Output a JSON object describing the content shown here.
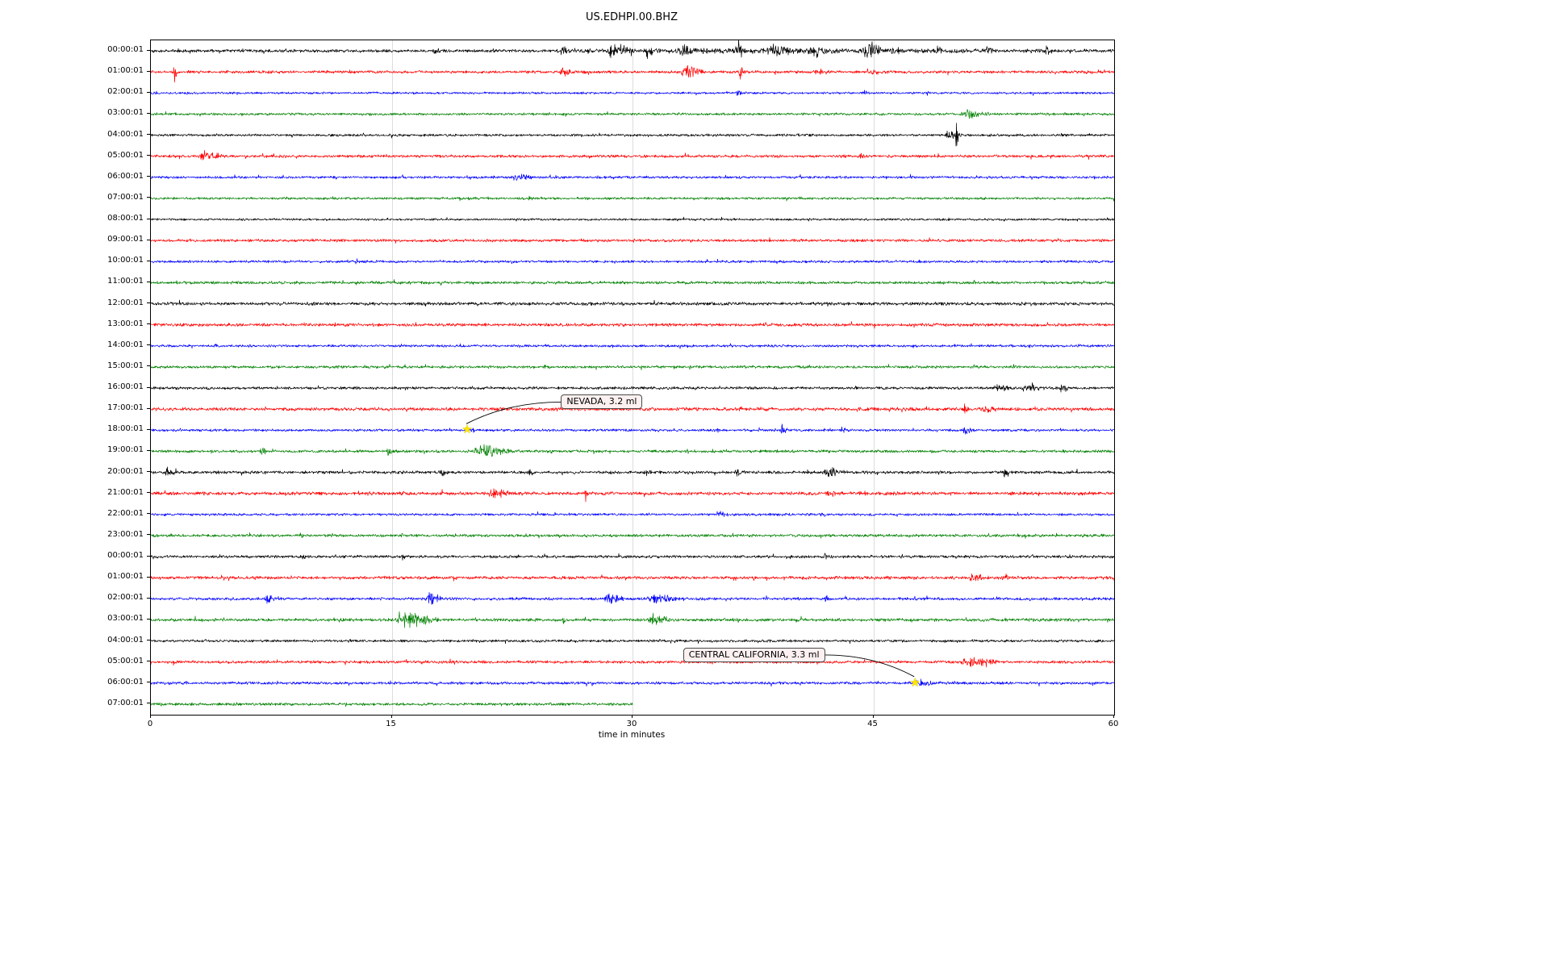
{
  "chart_data": {
    "type": "line",
    "variant": "seismogram-dayplot-helicorder",
    "title": "US.EDHPI.00.BHZ",
    "xlabel": "time in minutes",
    "xlim": [
      0,
      60
    ],
    "x_ticks": [
      0,
      15,
      30,
      45,
      60
    ],
    "grid": {
      "vertical": true,
      "horizontal": false,
      "color": "#dcdcdc"
    },
    "color_cycle": [
      "#000000",
      "#ff0000",
      "#0000ff",
      "#008000"
    ],
    "rows": [
      {
        "label": "00:00:01",
        "color": "#000000",
        "base_amp": 2.2,
        "extent": 60,
        "bursts": [
          [
            17.5,
            0.6,
            4
          ],
          [
            25.4,
            0.8,
            6
          ],
          [
            28.4,
            1.6,
            11
          ],
          [
            30.8,
            0.5,
            8
          ],
          [
            32.8,
            1.2,
            6
          ],
          [
            36.5,
            0.4,
            14
          ],
          [
            38.3,
            1.8,
            7
          ],
          [
            40.8,
            1.5,
            5
          ],
          [
            44.3,
            1.3,
            15
          ],
          [
            46.0,
            1.0,
            5
          ],
          [
            48.9,
            0.4,
            10
          ],
          [
            51.8,
            0.8,
            4
          ],
          [
            55.6,
            0.6,
            5
          ],
          [
            25.0,
            35.0,
            2
          ]
        ]
      },
      {
        "label": "01:00:01",
        "color": "#ff0000",
        "base_amp": 2.0,
        "extent": 60,
        "bursts": [
          [
            1.4,
            0.3,
            12
          ],
          [
            25.4,
            0.9,
            5
          ],
          [
            32.9,
            1.7,
            8
          ],
          [
            36.6,
            0.4,
            13
          ],
          [
            41.3,
            1.2,
            4
          ],
          [
            44.8,
            0.6,
            3
          ]
        ]
      },
      {
        "label": "02:00:01",
        "color": "#0000ff",
        "base_amp": 1.6,
        "extent": 60,
        "bursts": [
          [
            36.3,
            0.8,
            3
          ],
          [
            44.3,
            0.5,
            2.5
          ]
        ]
      },
      {
        "label": "03:00:01",
        "color": "#008000",
        "base_amp": 1.7,
        "extent": 60,
        "bursts": [
          [
            50.3,
            2.2,
            6
          ]
        ]
      },
      {
        "label": "04:00:01",
        "color": "#000000",
        "base_amp": 1.8,
        "extent": 60,
        "bursts": [
          [
            49.4,
            1.2,
            5
          ],
          [
            50.1,
            0.25,
            19
          ]
        ]
      },
      {
        "label": "05:00:01",
        "color": "#ff0000",
        "base_amp": 2.0,
        "extent": 60,
        "bursts": [
          [
            2.9,
            1.7,
            7
          ],
          [
            44.0,
            0.5,
            3
          ]
        ]
      },
      {
        "label": "06:00:01",
        "color": "#0000ff",
        "base_amp": 1.8,
        "extent": 60,
        "bursts": [
          [
            22.4,
            1.6,
            4
          ]
        ]
      },
      {
        "label": "07:00:01",
        "color": "#008000",
        "base_amp": 1.7,
        "extent": 60,
        "bursts": [
          [
            23.5,
            0.4,
            2.5
          ]
        ]
      },
      {
        "label": "08:00:01",
        "color": "#000000",
        "base_amp": 1.5,
        "extent": 60,
        "bursts": []
      },
      {
        "label": "09:00:01",
        "color": "#ff0000",
        "base_amp": 2.0,
        "extent": 60,
        "bursts": []
      },
      {
        "label": "10:00:01",
        "color": "#0000ff",
        "base_amp": 1.8,
        "extent": 60,
        "bursts": []
      },
      {
        "label": "11:00:01",
        "color": "#008000",
        "base_amp": 2.0,
        "extent": 60,
        "bursts": []
      },
      {
        "label": "12:00:01",
        "color": "#000000",
        "base_amp": 2.3,
        "extent": 60,
        "bursts": []
      },
      {
        "label": "13:00:01",
        "color": "#ff0000",
        "base_amp": 2.2,
        "extent": 60,
        "bursts": []
      },
      {
        "label": "14:00:01",
        "color": "#0000ff",
        "base_amp": 1.8,
        "extent": 60,
        "bursts": [
          [
            3.9,
            0.3,
            3
          ]
        ]
      },
      {
        "label": "15:00:01",
        "color": "#008000",
        "base_amp": 1.9,
        "extent": 60,
        "bursts": []
      },
      {
        "label": "16:00:01",
        "color": "#000000",
        "base_amp": 2.0,
        "extent": 60,
        "bursts": [
          [
            52.4,
            1.2,
            5
          ],
          [
            54.2,
            1.5,
            6
          ],
          [
            56.5,
            0.8,
            5
          ]
        ]
      },
      {
        "label": "17:00:01",
        "color": "#ff0000",
        "base_amp": 2.4,
        "extent": 60,
        "bursts": [
          [
            50.6,
            0.4,
            10
          ],
          [
            51.5,
            1.5,
            4
          ]
        ]
      },
      {
        "label": "18:00:01",
        "color": "#0000ff",
        "base_amp": 1.8,
        "extent": 60,
        "bursts": [
          [
            19.7,
            0.5,
            3
          ],
          [
            35.0,
            0.5,
            6
          ],
          [
            39.2,
            0.5,
            8
          ],
          [
            42.9,
            0.5,
            6
          ],
          [
            50.5,
            0.8,
            6
          ]
        ]
      },
      {
        "label": "19:00:01",
        "color": "#008000",
        "base_amp": 2.0,
        "extent": 60,
        "bursts": [
          [
            6.8,
            0.4,
            8
          ],
          [
            14.6,
            0.5,
            5
          ],
          [
            20.0,
            2.6,
            8
          ]
        ]
      },
      {
        "label": "20:00:01",
        "color": "#000000",
        "base_amp": 2.1,
        "extent": 60,
        "bursts": [
          [
            0.8,
            0.9,
            6
          ],
          [
            17.9,
            0.7,
            5
          ],
          [
            23.4,
            0.5,
            4
          ],
          [
            30.7,
            0.6,
            4
          ],
          [
            36.3,
            0.8,
            3
          ],
          [
            41.8,
            1.6,
            7
          ],
          [
            53.1,
            0.4,
            10
          ]
        ]
      },
      {
        "label": "21:00:01",
        "color": "#ff0000",
        "base_amp": 2.4,
        "extent": 60,
        "bursts": [
          [
            21.0,
            1.6,
            7
          ],
          [
            26.8,
            0.6,
            4
          ],
          [
            42.0,
            0.7,
            5
          ]
        ]
      },
      {
        "label": "22:00:01",
        "color": "#0000ff",
        "base_amp": 1.8,
        "extent": 60,
        "bursts": [
          [
            35.3,
            0.8,
            3
          ],
          [
            41.7,
            0.5,
            2.5
          ]
        ]
      },
      {
        "label": "23:00:01",
        "color": "#008000",
        "base_amp": 2.0,
        "extent": 60,
        "bursts": [
          [
            9.2,
            0.4,
            5
          ],
          [
            15.4,
            0.4,
            3
          ]
        ]
      },
      {
        "label": "00:00:01",
        "color": "#000000",
        "base_amp": 2.0,
        "extent": 60,
        "bursts": [
          [
            9.4,
            0.3,
            5
          ],
          [
            15.6,
            0.3,
            4
          ],
          [
            41.9,
            0.3,
            5
          ]
        ]
      },
      {
        "label": "01:00:01",
        "color": "#ff0000",
        "base_amp": 2.2,
        "extent": 60,
        "bursts": [
          [
            50.8,
            1.4,
            5
          ],
          [
            53.0,
            0.5,
            7
          ]
        ]
      },
      {
        "label": "02:00:01",
        "color": "#0000ff",
        "base_amp": 2.0,
        "extent": 60,
        "bursts": [
          [
            7.0,
            0.8,
            5
          ],
          [
            17.2,
            1.0,
            12
          ],
          [
            28.2,
            1.4,
            6
          ],
          [
            30.8,
            2.2,
            6
          ],
          [
            41.8,
            0.6,
            5
          ]
        ]
      },
      {
        "label": "03:00:01",
        "color": "#008000",
        "base_amp": 2.2,
        "extent": 60,
        "bursts": [
          [
            15.1,
            3.0,
            10
          ],
          [
            25.5,
            0.5,
            5
          ],
          [
            30.9,
            1.7,
            7
          ]
        ]
      },
      {
        "label": "04:00:01",
        "color": "#000000",
        "base_amp": 1.8,
        "extent": 60,
        "bursts": []
      },
      {
        "label": "05:00:01",
        "color": "#ff0000",
        "base_amp": 2.0,
        "extent": 60,
        "bursts": [
          [
            50.3,
            2.7,
            6
          ]
        ]
      },
      {
        "label": "06:00:01",
        "color": "#0000ff",
        "base_amp": 2.0,
        "extent": 60,
        "bursts": [
          [
            47.5,
            1.5,
            4
          ]
        ]
      },
      {
        "label": "07:00:01",
        "color": "#008000",
        "base_amp": 2.0,
        "extent": 30,
        "bursts": []
      }
    ],
    "events": [
      {
        "label": "NEVADA, 3.2 ml",
        "region": "NEVADA",
        "magnitude": "3.2 ml",
        "row_index": 18,
        "row_time": "18:00:01",
        "x_minutes": 19.7,
        "label_x_minutes": 25.6,
        "label_rows_above": 1.3,
        "marker": "yellow-star",
        "marker_color": "#ffe600"
      },
      {
        "label": "CENTRAL CALIFORNIA, 3.3 ml",
        "region": "CENTRAL CALIFORNIA",
        "magnitude": "3.3 ml",
        "row_index": 30,
        "row_time": "06:00:01",
        "x_minutes": 47.6,
        "label_x_minutes": 33.2,
        "label_rows_above": 1.3,
        "marker": "yellow-star",
        "marker_color": "#ffe600"
      }
    ],
    "annotation_style": {
      "background": "#fdf0f0",
      "border": "#4a4a4a"
    }
  }
}
